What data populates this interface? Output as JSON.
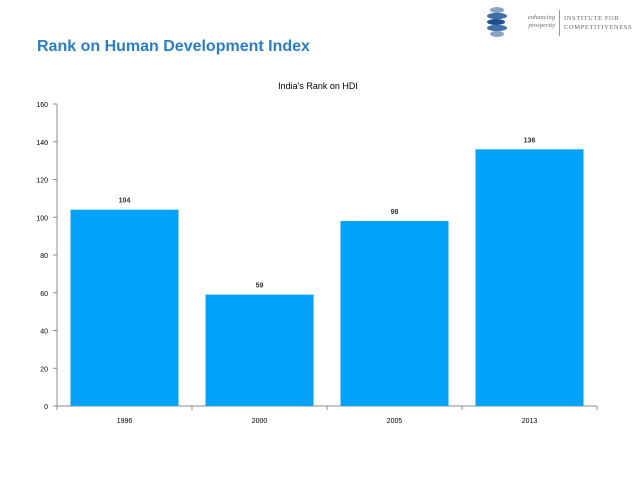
{
  "slide": {
    "title": "Rank on Human Development Index"
  },
  "logo": {
    "icon": "swirl-logo-icon",
    "tagline_line1": "enhancing",
    "tagline_line2": "prosperity",
    "org_line1": "Institute for",
    "org_line2": "Competitiveness"
  },
  "colors": {
    "bar": "#03a2fa",
    "title": "#2a7ec8",
    "axis": "#8c8c8c"
  },
  "chart_data": {
    "type": "bar",
    "title": "India's Rank on HDI",
    "categories": [
      "1996",
      "2000",
      "2005",
      "2013"
    ],
    "values": [
      104,
      59,
      98,
      136
    ],
    "data_labels": [
      "104",
      "59",
      "98",
      "136"
    ],
    "xlabel": "",
    "ylabel": "",
    "ylim": [
      0,
      160
    ],
    "yticks": [
      0,
      20,
      40,
      60,
      80,
      100,
      120,
      140,
      160
    ],
    "grid": false,
    "legend": "none"
  }
}
